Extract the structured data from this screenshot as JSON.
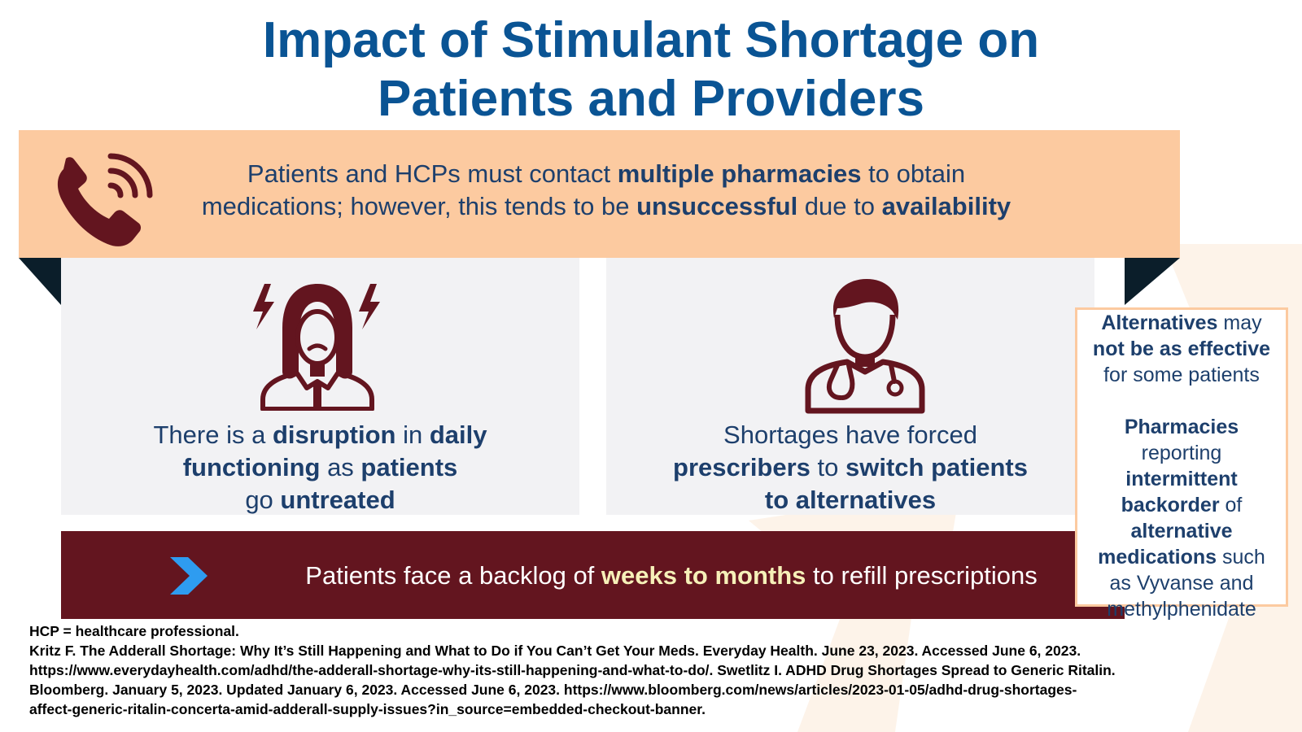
{
  "title": {
    "line1": "Impact of Stimulant Shortage on",
    "line2": "Patients and Providers"
  },
  "colors": {
    "title_blue": "#0a5494",
    "banner_peach": "#fccaa0",
    "maroon": "#63151f",
    "text_navy": "#1d3f6c",
    "chevron_blue": "#2e9cf0",
    "highlight_cream": "#f6f0b8"
  },
  "top_banner": {
    "icon": "phone-ringing-icon",
    "line1": {
      "t1": "Patients and HCPs must contact ",
      "b1": "multiple pharmacies",
      "t2": " to obtain"
    },
    "line2": {
      "t1": "medications; however, this tends to be ",
      "b1": "unsuccessful",
      "t2": " due to ",
      "b2": "availability"
    }
  },
  "left_panel": {
    "icon": "stressed-woman-icon",
    "line1": {
      "t1": "There is a ",
      "b1": "disruption",
      "t2": " in ",
      "b2": "daily"
    },
    "line2": {
      "b1": "functioning",
      "t1": " as ",
      "b2": "patients"
    },
    "line3": {
      "t1": "go ",
      "b1": "untreated"
    }
  },
  "right_panel": {
    "icon": "doctor-stethoscope-icon",
    "line1": {
      "t1": "Shortages have forced"
    },
    "line2": {
      "b1": "prescribers",
      "t1": " to ",
      "b2": "switch patients"
    },
    "line3": {
      "b1": "to alternatives"
    }
  },
  "bottom_banner": {
    "icon": "chevron-right-icon",
    "t1": "Patients face a backlog of ",
    "hl": "weeks to months",
    "t2": " to refill prescriptions"
  },
  "side_box": {
    "p1": {
      "b1": "Alternatives",
      "t1": " may",
      "b2": "not be as effective",
      "t2": "for some patients"
    },
    "p2": {
      "b1": "Pharmacies",
      "t1": "reporting",
      "b2": "intermittent",
      "b3": "backorder",
      "t2": " of",
      "b4": "alternative",
      "b5": "medications",
      "t3": " such",
      "t4": "as Vyvanse and",
      "t5": "methylphenidate"
    }
  },
  "footnote": {
    "line1": "HCP = healthcare professional.",
    "line2": "Kritz F. The Adderall Shortage: Why It’s Still Happening and What to Do if You Can’t Get Your Meds. Everyday Health. June 23, 2023. Accessed June 6, 2023.",
    "line3": "https://www.everydayhealth.com/adhd/the-adderall-shortage-why-its-still-happening-and-what-to-do/. Swetlitz I. ADHD Drug Shortages Spread to Generic Ritalin.",
    "line4": "Bloomberg. January 5, 2023. Updated January 6, 2023. Accessed June 6, 2023. https://www.bloomberg.com/news/articles/2023-01-05/adhd-drug-shortages-",
    "line5": "affect-generic-ritalin-concerta-amid-adderall-supply-issues?in_source=embedded-checkout-banner."
  }
}
